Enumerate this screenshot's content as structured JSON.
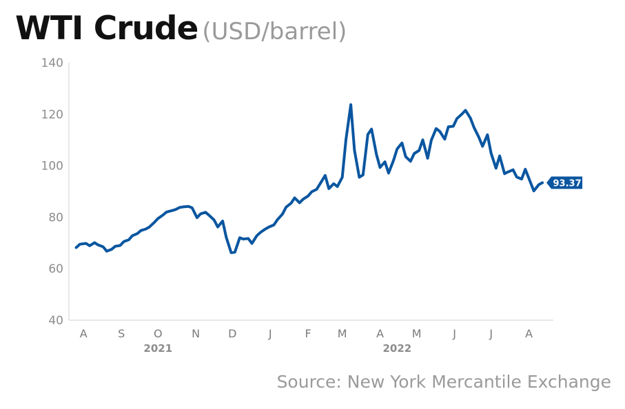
{
  "header": {
    "title": "WTI Crude",
    "subtitle": "(USD/barrel)"
  },
  "source": "Source: New York Mercantile Exchange",
  "colors": {
    "line": "#0a56a0",
    "axis": "#d0d0d0",
    "text": "#8c8c8c"
  },
  "chart_data": {
    "type": "line",
    "title": "WTI Crude",
    "subtitle": "(USD/barrel)",
    "ylim": [
      40,
      140
    ],
    "yticks": [
      40,
      60,
      80,
      100,
      120,
      140
    ],
    "x_tick_labels": [
      "A",
      "S",
      "O",
      "N",
      "D",
      "J",
      "F",
      "M",
      "A",
      "M",
      "J",
      "J",
      "A"
    ],
    "x_tick_positions": [
      "2021-08-01",
      "2021-09-01",
      "2021-10-01",
      "2021-11-01",
      "2021-12-01",
      "2022-01-01",
      "2022-02-01",
      "2022-03-01",
      "2022-04-01",
      "2022-05-01",
      "2022-06-01",
      "2022-07-01",
      "2022-08-01"
    ],
    "year_labels": [
      {
        "label": "2021",
        "x": "2021-10-01"
      },
      {
        "label": "2022",
        "x": "2022-04-15"
      }
    ],
    "grid": false,
    "last_value_label": "93.37",
    "series": [
      {
        "x": [
          "2021-07-26",
          "2021-07-29",
          "2021-08-03",
          "2021-08-06",
          "2021-08-10",
          "2021-08-13",
          "2021-08-17",
          "2021-08-20",
          "2021-08-24",
          "2021-08-27",
          "2021-08-31",
          "2021-09-03",
          "2021-09-07",
          "2021-09-10",
          "2021-09-14",
          "2021-09-17",
          "2021-09-21",
          "2021-09-24",
          "2021-09-28",
          "2021-10-01",
          "2021-10-05",
          "2021-10-08",
          "2021-10-12",
          "2021-10-15",
          "2021-10-19",
          "2021-10-22",
          "2021-10-26",
          "2021-10-29",
          "2021-11-02",
          "2021-11-05",
          "2021-11-09",
          "2021-11-12",
          "2021-11-16",
          "2021-11-19",
          "2021-11-23",
          "2021-11-26",
          "2021-11-30",
          "2021-12-03",
          "2021-12-07",
          "2021-12-10",
          "2021-12-14",
          "2021-12-17",
          "2021-12-21",
          "2021-12-24",
          "2021-12-28",
          "2021-12-31",
          "2022-01-04",
          "2022-01-07",
          "2022-01-11",
          "2022-01-14",
          "2022-01-18",
          "2022-01-21",
          "2022-01-25",
          "2022-01-28",
          "2022-02-01",
          "2022-02-04",
          "2022-02-08",
          "2022-02-11",
          "2022-02-15",
          "2022-02-18",
          "2022-02-22",
          "2022-02-25",
          "2022-03-01",
          "2022-03-04",
          "2022-03-08",
          "2022-03-11",
          "2022-03-15",
          "2022-03-18",
          "2022-03-22",
          "2022-03-25",
          "2022-03-29",
          "2022-04-01",
          "2022-04-05",
          "2022-04-08",
          "2022-04-12",
          "2022-04-15",
          "2022-04-19",
          "2022-04-22",
          "2022-04-26",
          "2022-04-29",
          "2022-05-03",
          "2022-05-06",
          "2022-05-10",
          "2022-05-13",
          "2022-05-17",
          "2022-05-20",
          "2022-05-24",
          "2022-05-27",
          "2022-05-31",
          "2022-06-03",
          "2022-06-07",
          "2022-06-10",
          "2022-06-14",
          "2022-06-17",
          "2022-06-21",
          "2022-06-24",
          "2022-06-28",
          "2022-07-01",
          "2022-07-05",
          "2022-07-08",
          "2022-07-12",
          "2022-07-15",
          "2022-07-19",
          "2022-07-22",
          "2022-07-26",
          "2022-07-29",
          "2022-08-02",
          "2022-08-05",
          "2022-08-09",
          "2022-08-12"
        ],
        "values": [
          68.2,
          69.5,
          69.8,
          68.9,
          70.1,
          69.2,
          68.5,
          66.8,
          67.5,
          68.7,
          69.0,
          70.5,
          71.2,
          72.8,
          73.6,
          74.8,
          75.4,
          76.2,
          78.0,
          79.5,
          80.8,
          82.0,
          82.5,
          82.9,
          83.8,
          84.0,
          84.2,
          83.6,
          79.8,
          81.3,
          81.9,
          80.7,
          78.9,
          76.2,
          78.5,
          72.1,
          66.2,
          66.4,
          72.0,
          71.5,
          71.7,
          69.8,
          72.8,
          74.1,
          75.4,
          76.2,
          77.0,
          79.1,
          81.2,
          83.9,
          85.4,
          87.5,
          85.6,
          87.0,
          88.2,
          89.9,
          90.8,
          93.1,
          96.2,
          91.1,
          93.0,
          91.9,
          95.5,
          110.0,
          123.7,
          106.0,
          95.5,
          96.4,
          112.1,
          114.2,
          104.5,
          99.3,
          101.5,
          97.1,
          102.0,
          106.5,
          108.8,
          103.5,
          101.7,
          104.7,
          105.9,
          110.0,
          102.9,
          109.9,
          114.4,
          113.3,
          110.3,
          115.1,
          115.3,
          118.3,
          120.0,
          121.5,
          118.5,
          114.8,
          111.0,
          107.5,
          112.0,
          104.8,
          99.0,
          103.8,
          96.9,
          97.6,
          98.4,
          95.6,
          94.8,
          98.6,
          93.8,
          90.2,
          92.6,
          93.37
        ]
      }
    ]
  }
}
